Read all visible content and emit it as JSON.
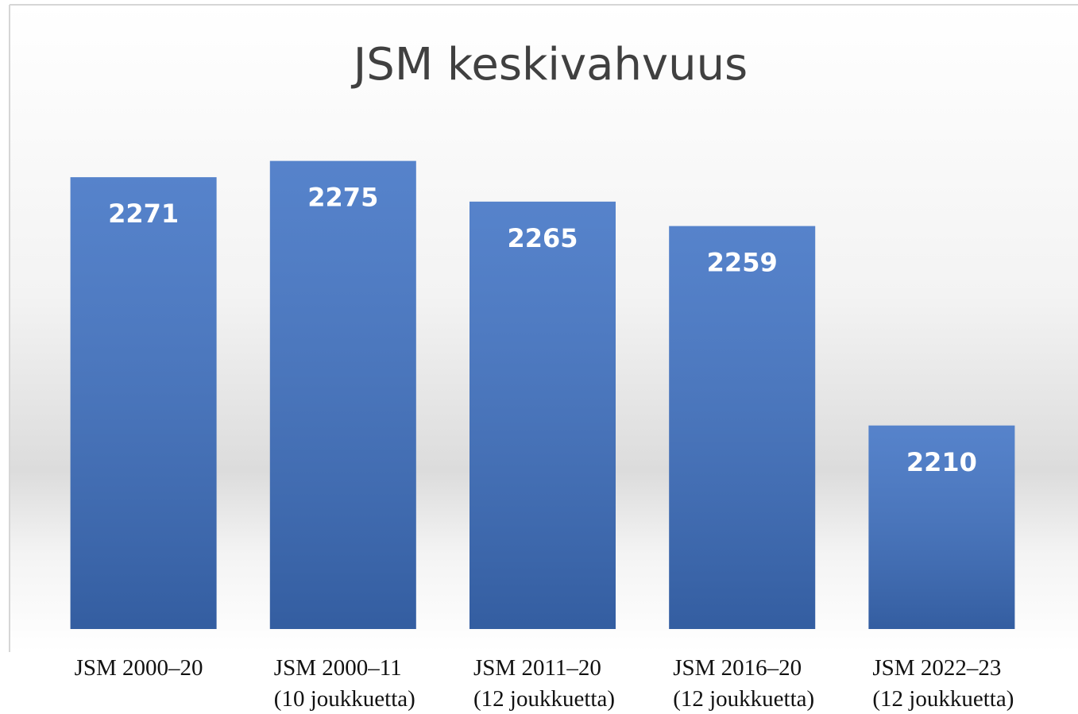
{
  "chart_data": {
    "type": "bar",
    "title": "JSM keskivahvuus",
    "categories": [
      "JSM 2000–20",
      "JSM 2000–11\n(10 joukkuetta)",
      "JSM 2011–20\n(12 joukkuetta)",
      "JSM 2016–20\n(12 joukkuetta)",
      "JSM 2022–23\n(12 joukkuetta)"
    ],
    "values": [
      2271,
      2275,
      2265,
      2259,
      2210
    ],
    "color": "#3f72c4",
    "ylim": [
      2160,
      2280
    ]
  }
}
